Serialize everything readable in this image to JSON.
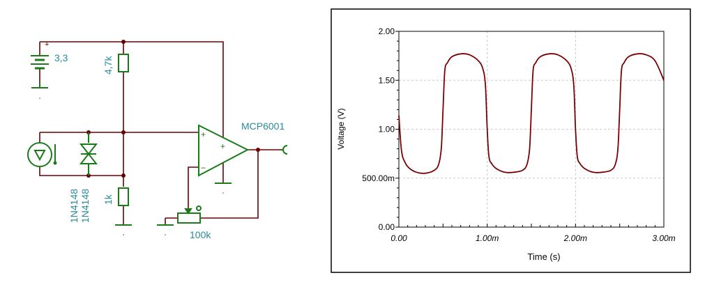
{
  "schematic": {
    "battery_label": "3,3",
    "r_top_label": "4,7k",
    "r_bottom_label": "1k",
    "diode1_label": "1N4148",
    "diode2_label": "1N4148",
    "opamp_label": "MCP6001",
    "pot_label": "100k",
    "opamp_plus_sign": "+",
    "opamp_minus_sign": "−",
    "supply_plus_sign": "+",
    "battery_plus_sign": "+"
  },
  "chart_data": {
    "type": "line",
    "title": "",
    "xlabel": "Time (s)",
    "ylabel": "Voltage (V)",
    "xlim": [
      0,
      0.003
    ],
    "ylim": [
      0,
      2.0
    ],
    "x_ticks": [
      {
        "value": 0.0,
        "label": "0.00"
      },
      {
        "value": 0.001,
        "label": "1.00m"
      },
      {
        "value": 0.002,
        "label": "2.00m"
      },
      {
        "value": 0.003,
        "label": "3.00m"
      }
    ],
    "y_ticks": [
      {
        "value": 0.0,
        "label": "0.00"
      },
      {
        "value": 0.5,
        "label": "500.00m"
      },
      {
        "value": 1.0,
        "label": "1.00"
      },
      {
        "value": 1.5,
        "label": "1.50"
      },
      {
        "value": 2.0,
        "label": "2.00"
      }
    ],
    "grid": true,
    "series": [
      {
        "color": "#7b0000",
        "x": [
          0.0,
          3e-05,
          7e-05,
          0.00012,
          0.0002,
          0.0003,
          0.0004,
          0.00045,
          0.00048,
          0.0005,
          0.00052,
          0.00055,
          0.0006,
          0.0007,
          0.0008,
          0.0009,
          0.00095,
          0.00098,
          0.001,
          0.00102,
          0.00105,
          0.0011,
          0.0012,
          0.0013,
          0.0014,
          0.00145,
          0.00148,
          0.0015,
          0.00152,
          0.00155,
          0.0016,
          0.0017,
          0.0018,
          0.0019,
          0.00195,
          0.00198,
          0.002,
          0.00202,
          0.00205,
          0.0021,
          0.0022,
          0.0023,
          0.0024,
          0.00245,
          0.00248,
          0.0025,
          0.00252,
          0.00255,
          0.0026,
          0.0027,
          0.0028,
          0.0029,
          0.003
        ],
        "y": [
          1.14,
          0.78,
          0.66,
          0.6,
          0.56,
          0.55,
          0.58,
          0.64,
          0.8,
          1.2,
          1.6,
          1.68,
          1.74,
          1.77,
          1.76,
          1.7,
          1.62,
          1.45,
          1.0,
          0.72,
          0.65,
          0.6,
          0.56,
          0.56,
          0.58,
          0.64,
          0.8,
          1.2,
          1.6,
          1.68,
          1.74,
          1.77,
          1.76,
          1.7,
          1.62,
          1.45,
          1.0,
          0.72,
          0.65,
          0.6,
          0.56,
          0.56,
          0.58,
          0.64,
          0.8,
          1.2,
          1.6,
          1.68,
          1.74,
          1.77,
          1.76,
          1.7,
          1.5
        ]
      }
    ]
  }
}
